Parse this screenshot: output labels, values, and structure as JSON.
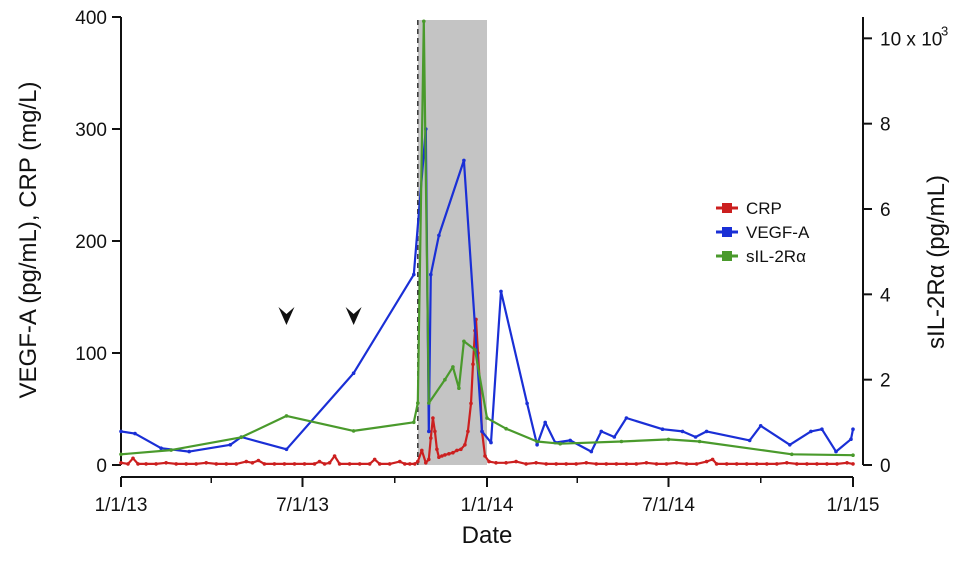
{
  "chart_data": {
    "type": "line",
    "xlabel": "Date",
    "ylabel_left": "VEGF-A (pg/mL), CRP (mg/L)",
    "ylabel_right": "sIL-2Rα (pg/mL)",
    "x_ticks": [
      "1/1/13",
      "7/1/13",
      "1/1/14",
      "7/1/14",
      "1/1/15"
    ],
    "y_left_ticks": [
      "0",
      "100",
      "200",
      "300",
      "400"
    ],
    "y_right_ticks": [
      "0",
      "2",
      "4",
      "6",
      "8",
      "10 x 10^3"
    ],
    "y_right_tick_main": "10 x 10",
    "y_right_tick_exp": "3",
    "xlim": [
      "2013-01-01",
      "2015-01-01"
    ],
    "ylim_left": [
      0,
      400
    ],
    "ylim_right": [
      0,
      10500
    ],
    "shaded_region": [
      "2013-10-24",
      "2014-01-01"
    ],
    "vertical_dashed_line": "2013-10-24",
    "arrowheads": [
      "2013-06-15",
      "2013-08-21"
    ],
    "legend_position": "right",
    "series": [
      {
        "name": "CRP",
        "color": "#cc1f1f",
        "axis": "left",
        "points": [
          [
            "2013-01-01",
            2
          ],
          [
            "2013-01-08",
            1
          ],
          [
            "2013-01-13",
            6
          ],
          [
            "2013-01-18",
            1
          ],
          [
            "2013-01-26",
            1
          ],
          [
            "2013-02-05",
            1
          ],
          [
            "2013-02-15",
            2
          ],
          [
            "2013-02-25",
            1
          ],
          [
            "2013-03-07",
            1
          ],
          [
            "2013-03-17",
            1
          ],
          [
            "2013-03-27",
            2
          ],
          [
            "2013-04-06",
            1
          ],
          [
            "2013-04-16",
            1
          ],
          [
            "2013-04-26",
            1
          ],
          [
            "2013-05-06",
            3
          ],
          [
            "2013-05-12",
            2
          ],
          [
            "2013-05-18",
            4
          ],
          [
            "2013-05-24",
            1
          ],
          [
            "2013-06-03",
            1
          ],
          [
            "2013-06-13",
            1
          ],
          [
            "2013-06-23",
            1
          ],
          [
            "2013-07-03",
            1
          ],
          [
            "2013-07-13",
            1
          ],
          [
            "2013-07-18",
            3
          ],
          [
            "2013-07-23",
            1
          ],
          [
            "2013-07-28",
            2
          ],
          [
            "2013-08-02",
            8
          ],
          [
            "2013-08-07",
            1
          ],
          [
            "2013-08-17",
            1
          ],
          [
            "2013-08-27",
            1
          ],
          [
            "2013-09-06",
            1
          ],
          [
            "2013-09-11",
            5
          ],
          [
            "2013-09-16",
            1
          ],
          [
            "2013-09-26",
            1
          ],
          [
            "2013-10-06",
            3
          ],
          [
            "2013-10-11",
            1
          ],
          [
            "2013-10-16",
            1
          ],
          [
            "2013-10-21",
            1
          ],
          [
            "2013-10-24",
            3
          ],
          [
            "2013-10-28",
            13
          ],
          [
            "2013-11-01",
            2
          ],
          [
            "2013-11-04",
            5
          ],
          [
            "2013-11-06",
            24
          ],
          [
            "2013-11-08",
            42
          ],
          [
            "2013-11-10",
            30
          ],
          [
            "2013-11-12",
            14
          ],
          [
            "2013-11-14",
            7
          ],
          [
            "2013-11-17",
            8
          ],
          [
            "2013-11-20",
            9
          ],
          [
            "2013-11-24",
            10
          ],
          [
            "2013-11-28",
            11
          ],
          [
            "2013-12-02",
            13
          ],
          [
            "2013-12-06",
            14
          ],
          [
            "2013-12-10",
            18
          ],
          [
            "2013-12-13",
            30
          ],
          [
            "2013-12-16",
            55
          ],
          [
            "2013-12-18",
            90
          ],
          [
            "2013-12-20",
            120
          ],
          [
            "2013-12-21",
            130
          ],
          [
            "2013-12-23",
            100
          ],
          [
            "2013-12-25",
            70
          ],
          [
            "2013-12-27",
            30
          ],
          [
            "2013-12-30",
            8
          ],
          [
            "2014-01-03",
            3
          ],
          [
            "2014-01-10",
            2
          ],
          [
            "2014-01-20",
            2
          ],
          [
            "2014-01-30",
            3
          ],
          [
            "2014-02-09",
            1
          ],
          [
            "2014-02-19",
            2
          ],
          [
            "2014-03-01",
            1
          ],
          [
            "2014-03-11",
            1
          ],
          [
            "2014-03-21",
            1
          ],
          [
            "2014-03-31",
            1
          ],
          [
            "2014-04-10",
            2
          ],
          [
            "2014-04-20",
            1
          ],
          [
            "2014-04-30",
            1
          ],
          [
            "2014-05-10",
            1
          ],
          [
            "2014-05-20",
            1
          ],
          [
            "2014-05-30",
            1
          ],
          [
            "2014-06-09",
            2
          ],
          [
            "2014-06-19",
            1
          ],
          [
            "2014-06-29",
            1
          ],
          [
            "2014-07-09",
            2
          ],
          [
            "2014-07-19",
            1
          ],
          [
            "2014-07-29",
            1
          ],
          [
            "2014-08-08",
            3
          ],
          [
            "2014-08-14",
            5
          ],
          [
            "2014-08-18",
            1
          ],
          [
            "2014-08-28",
            1
          ],
          [
            "2014-09-07",
            1
          ],
          [
            "2014-09-17",
            1
          ],
          [
            "2014-09-27",
            1
          ],
          [
            "2014-10-07",
            1
          ],
          [
            "2014-10-17",
            1
          ],
          [
            "2014-10-27",
            2
          ],
          [
            "2014-11-06",
            1
          ],
          [
            "2014-11-16",
            1
          ],
          [
            "2014-11-26",
            1
          ],
          [
            "2014-12-06",
            1
          ],
          [
            "2014-12-16",
            1
          ],
          [
            "2014-12-26",
            2
          ],
          [
            "2015-01-01",
            1
          ]
        ]
      },
      {
        "name": "VEGF-A",
        "color": "#1a2fd6",
        "axis": "left",
        "points": [
          [
            "2013-01-01",
            30
          ],
          [
            "2013-01-15",
            28
          ],
          [
            "2013-02-10",
            15
          ],
          [
            "2013-03-10",
            12
          ],
          [
            "2013-04-20",
            18
          ],
          [
            "2013-05-01",
            25
          ],
          [
            "2013-06-15",
            14
          ],
          [
            "2013-08-21",
            82
          ],
          [
            "2013-10-20",
            170
          ],
          [
            "2013-11-01",
            300
          ],
          [
            "2013-11-04",
            30
          ],
          [
            "2013-11-06",
            170
          ],
          [
            "2013-11-14",
            205
          ],
          [
            "2013-12-09",
            272
          ],
          [
            "2013-12-27",
            30
          ],
          [
            "2014-01-05",
            20
          ],
          [
            "2014-01-15",
            155
          ],
          [
            "2014-02-10",
            55
          ],
          [
            "2014-02-20",
            18
          ],
          [
            "2014-02-28",
            38
          ],
          [
            "2014-03-10",
            20
          ],
          [
            "2014-03-25",
            22
          ],
          [
            "2014-04-15",
            12
          ],
          [
            "2014-04-25",
            30
          ],
          [
            "2014-05-08",
            25
          ],
          [
            "2014-05-20",
            42
          ],
          [
            "2014-06-25",
            32
          ],
          [
            "2014-07-15",
            30
          ],
          [
            "2014-07-28",
            25
          ],
          [
            "2014-08-08",
            30
          ],
          [
            "2014-09-20",
            22
          ],
          [
            "2014-10-01",
            35
          ],
          [
            "2014-10-30",
            18
          ],
          [
            "2014-11-20",
            30
          ],
          [
            "2014-12-01",
            32
          ],
          [
            "2014-12-15",
            12
          ],
          [
            "2014-12-30",
            23
          ],
          [
            "2015-01-01",
            32
          ]
        ]
      },
      {
        "name": "sIL-2Rα",
        "color": "#4a9a2c",
        "axis": "right",
        "points": [
          [
            "2013-01-01",
            250
          ],
          [
            "2013-02-20",
            350
          ],
          [
            "2013-05-01",
            650
          ],
          [
            "2013-06-15",
            1150
          ],
          [
            "2013-08-21",
            800
          ],
          [
            "2013-10-20",
            1000
          ],
          [
            "2013-10-24",
            1450
          ],
          [
            "2013-10-30",
            10400
          ],
          [
            "2013-11-04",
            1450
          ],
          [
            "2013-11-20",
            2000
          ],
          [
            "2013-11-28",
            2300
          ],
          [
            "2013-12-04",
            1800
          ],
          [
            "2013-12-09",
            2900
          ],
          [
            "2013-12-20",
            2700
          ],
          [
            "2014-01-01",
            1100
          ],
          [
            "2014-01-20",
            850
          ],
          [
            "2014-02-20",
            550
          ],
          [
            "2014-03-15",
            500
          ],
          [
            "2014-05-15",
            550
          ],
          [
            "2014-07-01",
            600
          ],
          [
            "2014-08-01",
            550
          ],
          [
            "2014-11-01",
            250
          ],
          [
            "2015-01-01",
            230
          ]
        ]
      }
    ]
  }
}
